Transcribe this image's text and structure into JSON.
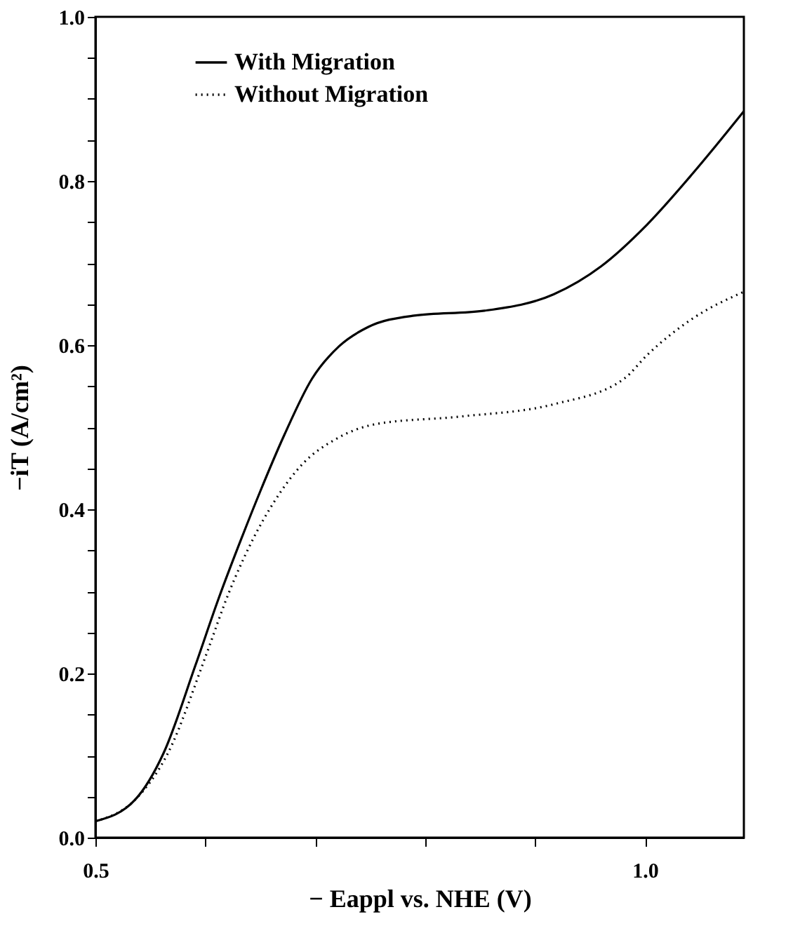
{
  "chart_data": {
    "type": "line",
    "xlabel": "− Eappl vs. NHE    (V)",
    "ylabel": "−iT  (A/cm²)",
    "xlim": [
      0.5,
      1.09
    ],
    "ylim": [
      0,
      1
    ],
    "xticks": [
      0.5,
      {
        "value": 0.6,
        "label": null
      },
      {
        "value": 0.7,
        "label": null
      },
      {
        "value": 0.8,
        "label": null
      },
      {
        "value": 0.9,
        "label": null
      },
      {
        "value": 1.0,
        "label": "1.0"
      }
    ],
    "yticks": [
      {
        "value": 0,
        "label": "0.0"
      },
      {
        "value": 0.05,
        "label": null
      },
      {
        "value": 0.1,
        "label": null
      },
      {
        "value": 0.15,
        "label": null
      },
      {
        "value": 0.2,
        "label": "0.2"
      },
      {
        "value": 0.25,
        "label": null
      },
      {
        "value": 0.3,
        "label": null
      },
      {
        "value": 0.35,
        "label": null
      },
      {
        "value": 0.4,
        "label": "0.4"
      },
      {
        "value": 0.45,
        "label": null
      },
      {
        "value": 0.5,
        "label": null
      },
      {
        "value": 0.55,
        "label": null
      },
      {
        "value": 0.6,
        "label": "0.6"
      },
      {
        "value": 0.65,
        "label": null
      },
      {
        "value": 0.7,
        "label": null
      },
      {
        "value": 0.75,
        "label": null
      },
      {
        "value": 0.8,
        "label": "0.8"
      },
      {
        "value": 0.85,
        "label": null
      },
      {
        "value": 0.9,
        "label": null
      },
      {
        "value": 0.95,
        "label": null
      },
      {
        "value": 1.0,
        "label": "1.0"
      }
    ],
    "grid": false,
    "legend": "top left",
    "marker": "none",
    "series": [
      {
        "name": "With Migration",
        "color": "#000000",
        "line_style": "solid",
        "x": [
          0.5,
          0.536,
          0.562,
          0.591,
          0.612,
          0.633,
          0.65,
          0.672,
          0.697,
          0.722,
          0.748,
          0.79,
          0.854,
          0.917,
          0.96,
          1.002,
          1.044,
          1.09
        ],
        "values": [
          0.02,
          0.046,
          0.103,
          0.21,
          0.291,
          0.365,
          0.422,
          0.491,
          0.559,
          0.599,
          0.622,
          0.636,
          0.642,
          0.662,
          0.696,
          0.747,
          0.81,
          0.885
        ]
      },
      {
        "name": "Without Migration",
        "color": "#000000",
        "line_style": "dotted",
        "x": [
          0.5,
          0.536,
          0.566,
          0.6,
          0.621,
          0.642,
          0.663,
          0.689,
          0.718,
          0.756,
          0.832,
          0.917,
          0.981,
          1.002,
          1.044,
          1.09
        ],
        "values": [
          0.02,
          0.046,
          0.103,
          0.22,
          0.297,
          0.36,
          0.41,
          0.456,
          0.485,
          0.504,
          0.513,
          0.528,
          0.559,
          0.588,
          0.633,
          0.665
        ]
      }
    ]
  }
}
